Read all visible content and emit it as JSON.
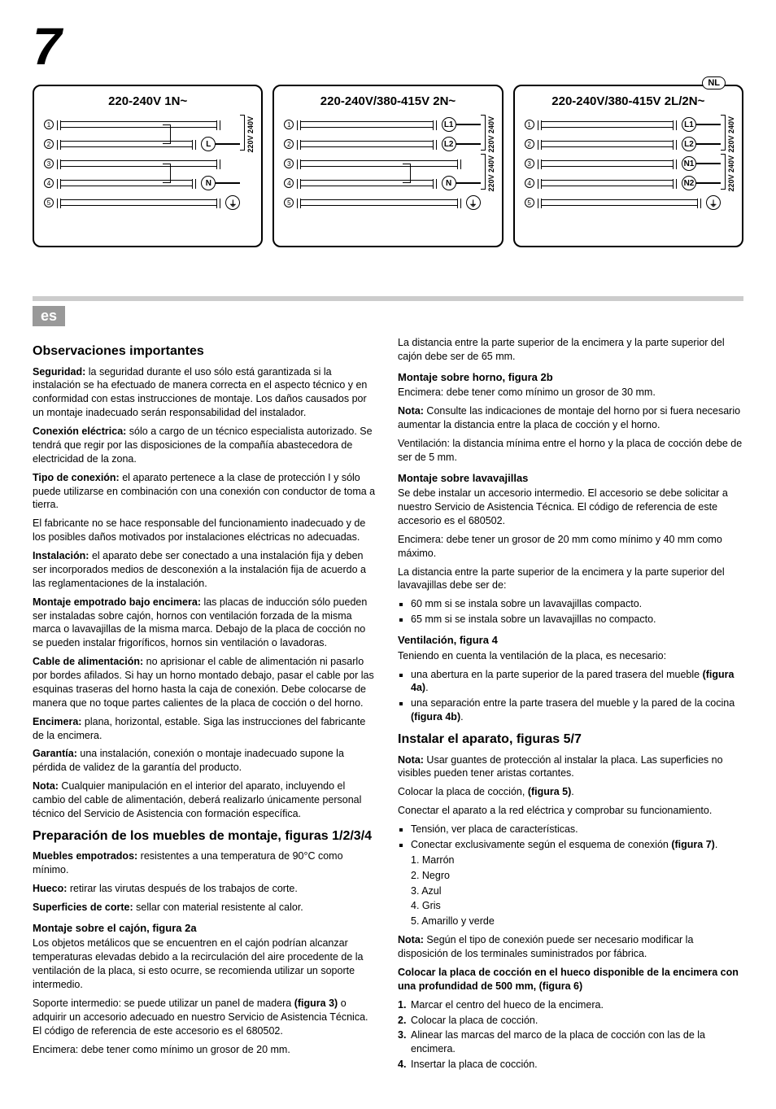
{
  "page_number": "7",
  "diagrams": [
    {
      "title": "220-240V 1N~",
      "rows": [
        {
          "n": "1",
          "pin": "",
          "wire": false
        },
        {
          "n": "2",
          "pin": "L",
          "wire": true,
          "link_prev": true
        },
        {
          "n": "3",
          "pin": "",
          "wire": false
        },
        {
          "n": "4",
          "pin": "N",
          "wire": true,
          "link_prev": true
        },
        {
          "n": "5",
          "pin": "⏚",
          "wire": false
        }
      ],
      "volt": "220V 240V",
      "badge": null
    },
    {
      "title": "220-240V/380-415V 2N~",
      "rows": [
        {
          "n": "1",
          "pin": "L1",
          "wire": true
        },
        {
          "n": "2",
          "pin": "L2",
          "wire": true
        },
        {
          "n": "3",
          "pin": "",
          "wire": false
        },
        {
          "n": "4",
          "pin": "N",
          "wire": true,
          "link_prev": true
        },
        {
          "n": "5",
          "pin": "⏚",
          "wire": false
        }
      ],
      "volt": "220V 240V",
      "volt2": "220V 240V",
      "badge": null
    },
    {
      "title": "220-240V/380-415V 2L/2N~",
      "rows": [
        {
          "n": "1",
          "pin": "L1",
          "wire": true
        },
        {
          "n": "2",
          "pin": "L2",
          "wire": true
        },
        {
          "n": "3",
          "pin": "N1",
          "wire": true
        },
        {
          "n": "4",
          "pin": "N2",
          "wire": true
        },
        {
          "n": "5",
          "pin": "⏚",
          "wire": false
        }
      ],
      "volt": "220V 240V",
      "volt2": "220V 240V",
      "badge": "NL"
    }
  ],
  "lang_tag": "es",
  "left": {
    "h_obs": "Observaciones importantes",
    "p_seg": "Seguridad: la seguridad durante el uso sólo está garantizada si la instalación se ha efectuado de manera correcta en el aspecto técnico y en conformidad con estas instrucciones de montaje. Los daños causados por un montaje inadecuado serán responsabilidad del instalador.",
    "p_seg_b": "Seguridad:",
    "p_con": "Conexión eléctrica: sólo a cargo de un técnico especialista autorizado. Se tendrá que regir por las disposiciones de la compañía abastecedora de electricidad de la zona.",
    "p_con_b": "Conexión eléctrica:",
    "p_tipo": "Tipo de conexión: el aparato pertenece a la clase de protección I y sólo puede utilizarse en combinación con una conexión con conductor de toma a tierra.",
    "p_tipo_b": "Tipo de conexión:",
    "p_fab": "El fabricante no se hace responsable del funcionamiento inadecuado y de los posibles daños motivados por instalaciones eléctricas no adecuadas.",
    "p_inst": "Instalación: el aparato debe ser conectado a una instalación fija y deben ser incorporados medios de desconexión a la instalación fija de acuerdo a las reglamentaciones de la instalación.",
    "p_inst_b": "Instalación:",
    "p_mont": "Montaje empotrado bajo encimera: las placas de inducción sólo pueden ser instaladas sobre cajón, hornos con ventilación forzada de la misma marca o lavavajillas de la misma marca. Debajo de la placa de cocción no se pueden instalar frigoríficos, hornos sin ventilación o lavadoras.",
    "p_mont_b": "Montaje empotrado bajo encimera:",
    "p_cable": "Cable de alimentación: no aprisionar el cable de alimentación ni pasarlo por bordes afilados. Si hay un horno montado debajo, pasar el cable por las esquinas traseras del horno hasta la caja de conexión. Debe colocarse de manera que no toque partes calientes de la placa de cocción o del horno.",
    "p_cable_b": "Cable de alimentación:",
    "p_enc": "Encimera: plana, horizontal, estable. Siga las instrucciones del fabricante de la encimera.",
    "p_enc_b": "Encimera:",
    "p_gar": "Garantía: una instalación, conexión o montaje inadecuado supone la pérdida de validez de la garantía del producto.",
    "p_gar_b": "Garantía:",
    "p_nota": "Nota: Cualquier manipulación en el interior del aparato, incluyendo el cambio del cable de alimentación, deberá realizarlo únicamente personal técnico del Servicio de Asistencia con formación específica.",
    "p_nota_b": "Nota:",
    "h_prep": "Preparación de los muebles de montaje, figuras 1/2/3/4",
    "p_mueb": "Muebles empotrados: resistentes a una temperatura de 90°C como mínimo.",
    "p_mueb_b": "Muebles empotrados:",
    "p_hueco": "Hueco: retirar las virutas después de los trabajos de corte.",
    "p_hueco_b": "Hueco:",
    "p_sup": "Superficies de corte: sellar con material resistente al calor.",
    "p_sup_b": "Superficies de corte:",
    "h_2a": "Montaje sobre el cajón, figura 2a",
    "p_2a_1": "Los objetos metálicos que se encuentren en el cajón podrían alcanzar temperaturas elevadas debido a la recirculación del aire procedente de la ventilación de la placa, si esto ocurre, se recomienda utilizar un soporte intermedio.",
    "p_2a_2": "Soporte intermedio: se puede utilizar un panel de madera (figura 3) o adquirir un accesorio adecuado en nuestro Servicio de Asistencia Técnica. El código de referencia de este accesorio es el 680502.",
    "p_2a_2b": "(figura 3)",
    "p_2a_3": "Encimera: debe tener como mínimo un grosor de 20 mm."
  },
  "right": {
    "p_dist": "La distancia entre la parte superior de la encimera y la parte superior del cajón debe ser de 65 mm.",
    "h_2b": "Montaje sobre horno, figura 2b",
    "p_2b_1": "Encimera: debe tener como mínimo un grosor de 30 mm.",
    "p_2b_2": "Nota: Consulte las indicaciones de montaje del horno por si fuera necesario aumentar la distancia entre la placa de cocción y el horno.",
    "p_2b_2b": "Nota:",
    "p_2b_3": "Ventilación: la distancia mínima entre el horno y la placa de cocción debe de ser de 5 mm.",
    "h_lav": "Montaje sobre lavavajillas",
    "p_lav_1": "Se debe instalar un accesorio intermedio. El accesorio se debe solicitar a nuestro Servicio de Asistencia Técnica.  El código de referencia de este accesorio es el 680502.",
    "p_lav_2": "Encimera: debe tener un grosor de 20 mm como mínimo y 40 mm como máximo.",
    "p_lav_3": "La distancia entre la parte superior de la encimera y la parte superior del lavavajillas debe ser de:",
    "li_lav_1": "60 mm si se instala sobre un lavavajillas compacto.",
    "li_lav_2": "65 mm si se instala sobre un lavavajillas no compacto.",
    "h_vent": "Ventilación, figura 4",
    "p_vent_1": "Teniendo en cuenta la ventilación de la placa, es necesario:",
    "li_vent_1": "una abertura en la parte superior de la pared trasera del mueble (figura 4a).",
    "li_vent_1b": "(figura 4a)",
    "li_vent_2": "una separación entre la parte trasera del mueble y la pared de la cocina (figura 4b).",
    "li_vent_2b": "(figura 4b)",
    "h_inst": "Instalar el aparato, figuras 5/7",
    "p_inst_1": "Nota: Usar guantes de protección al instalar la placa. Las superficies no visibles pueden tener aristas cortantes.",
    "p_inst_1b": "Nota:",
    "p_inst_2": "Colocar la placa de cocción, (figura 5).",
    "p_inst_2b": "(figura 5)",
    "p_inst_3": "Conectar el aparato a la red eléctrica y comprobar su funcionamiento.",
    "li_t": "Tensión, ver placa de características.",
    "li_c": "Conectar exclusivamente según el esquema de conexión (figura 7).",
    "li_cb": "(figura 7)",
    "c1": "1. Marrón",
    "c2": "2. Negro",
    "c3": "3. Azul",
    "c4": "4. Gris",
    "c5": "5. Amarillo y verde",
    "p_nota2": "Nota: Según el tipo de conexión puede ser necesario modificar la disposición de los terminales suministrados por fábrica.",
    "p_nota2b": "Nota:",
    "h_col": "Colocar la placa de cocción en el hueco disponible de la encimera con una profundidad de 500 mm, (figura 6)",
    "s1": "Marcar el centro del hueco de la encimera.",
    "s2": "Colocar la placa de cocción.",
    "s3": "Alinear las marcas del marco de la placa de cocción con las de la encimera.",
    "s4": "Insertar la placa de cocción."
  }
}
